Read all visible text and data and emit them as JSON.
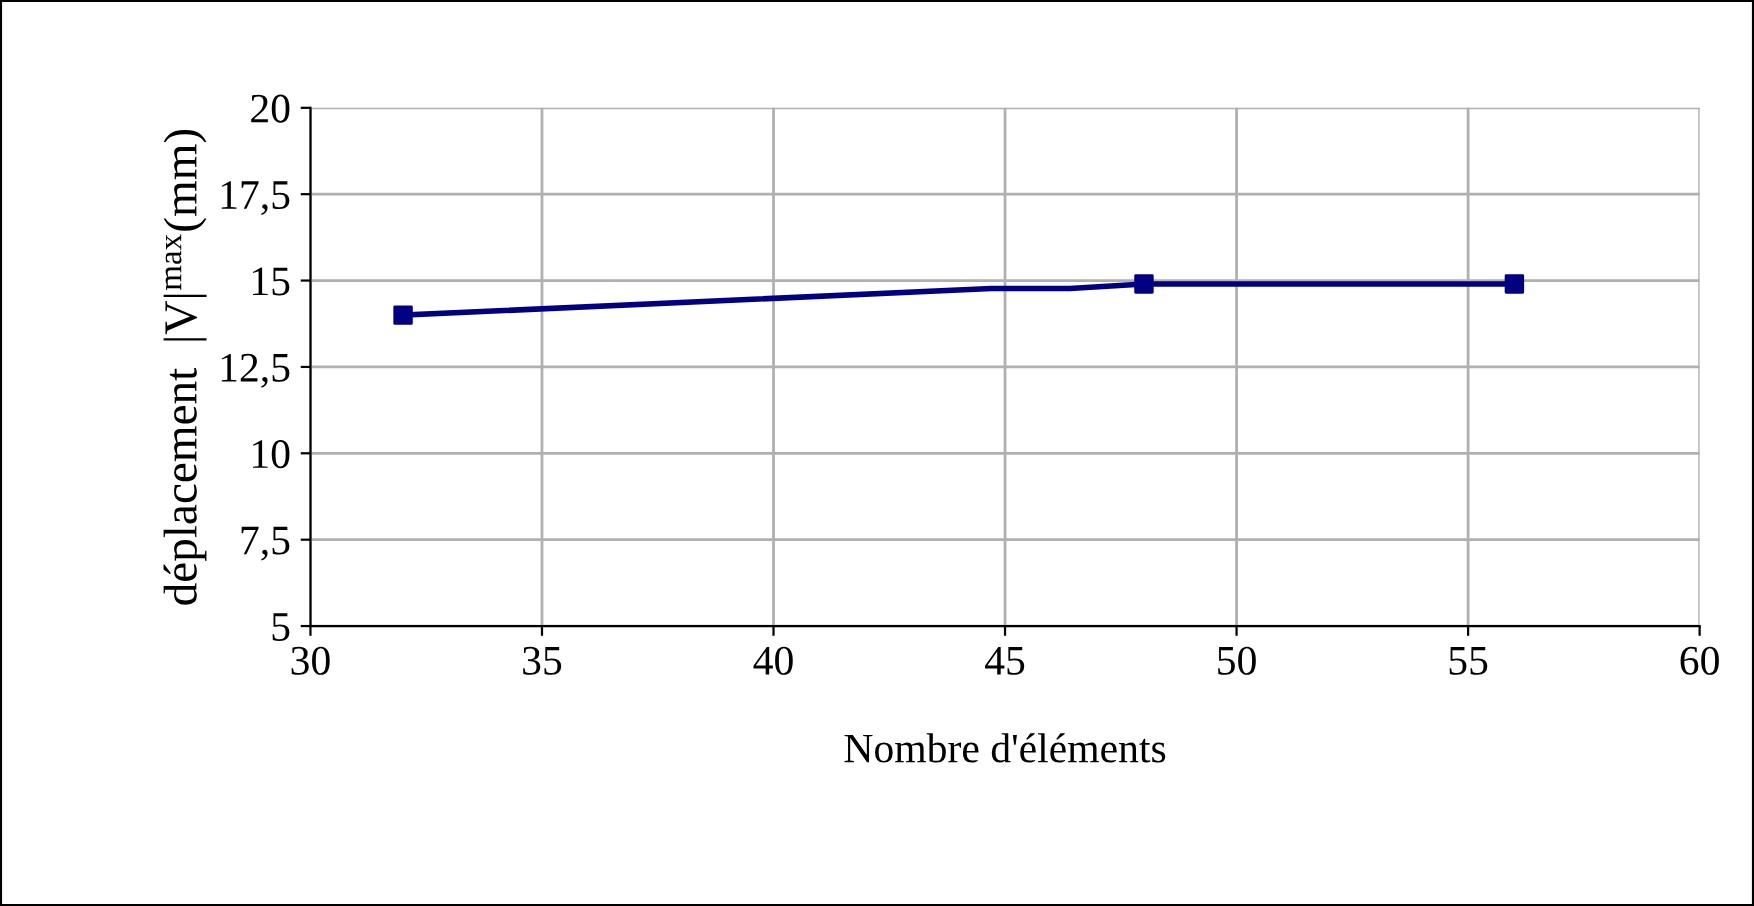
{
  "chart_data": {
    "type": "line",
    "xlabel": "Nombre d'éléments",
    "ylabel": "déplacement  |V|$^{max}$(mm)",
    "series": [
      {
        "color": "#000080",
        "x": [
          32,
          44.7,
          46.4,
          48,
          56
        ],
        "values": [
          14.0,
          14.77,
          14.77,
          14.9,
          14.9
        ],
        "marker": "none"
      },
      {
        "type": "scatter",
        "color": "#000080",
        "x": [
          32,
          48,
          56
        ],
        "values": [
          14.0,
          14.9,
          14.9
        ],
        "marker": "square"
      }
    ],
    "xlim": [
      30,
      60
    ],
    "xticks": [
      30,
      35,
      40,
      45,
      50,
      55,
      60
    ],
    "ylim": [
      5,
      20
    ],
    "yticks": [
      5,
      {
        "value": 7.5,
        "label": "7,5"
      },
      10,
      {
        "value": 12.5,
        "label": "12,5"
      },
      15,
      {
        "value": 17.5,
        "label": "17,5"
      },
      20
    ],
    "grid": true
  }
}
